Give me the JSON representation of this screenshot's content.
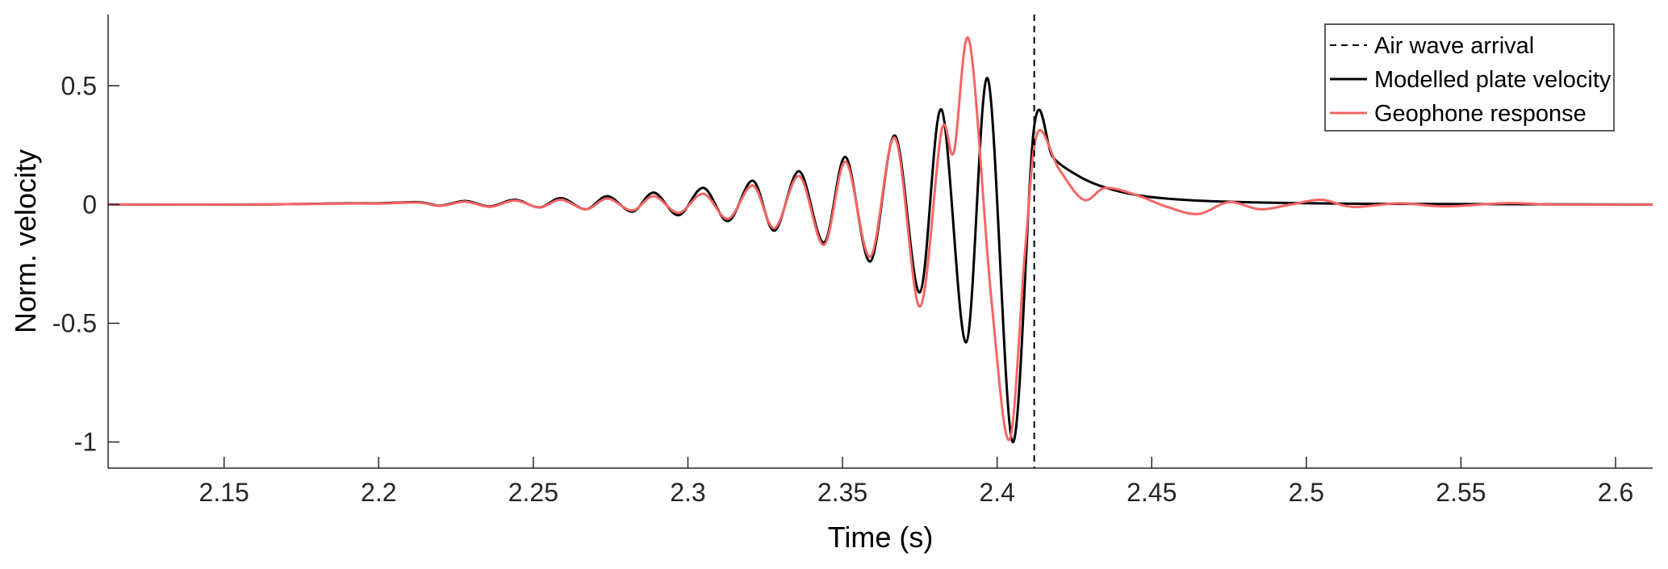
{
  "chart_data": {
    "type": "line",
    "title": "",
    "xlabel": "Time (s)",
    "ylabel": "Norm. velocity",
    "xlim": [
      2.1125,
      2.612
    ],
    "ylim": [
      -1.11,
      0.8
    ],
    "xticks": [
      2.15,
      2.2,
      2.25,
      2.3,
      2.35,
      2.4,
      2.45,
      2.5,
      2.55,
      2.6
    ],
    "xtick_labels": [
      "2.15",
      "2.2",
      "2.25",
      "2.3",
      "2.35",
      "2.4",
      "2.45",
      "2.5",
      "2.55",
      "2.6"
    ],
    "yticks": [
      -1,
      -0.5,
      0,
      0.5
    ],
    "ytick_labels": [
      "-1",
      "-0.5",
      "0",
      "0.5"
    ],
    "grid": false,
    "legend_position": "top-right",
    "series": [
      {
        "name": "Modelled plate velocity",
        "color": "#000000",
        "points": [
          [
            2.1125,
            0.0
          ],
          [
            2.16,
            0.0
          ],
          [
            2.19,
            0.005
          ],
          [
            2.2,
            0.005
          ],
          [
            2.213,
            0.01
          ],
          [
            2.22,
            -0.005
          ],
          [
            2.228,
            0.015
          ],
          [
            2.236,
            -0.008
          ],
          [
            2.244,
            0.02
          ],
          [
            2.252,
            -0.012
          ],
          [
            2.259,
            0.027
          ],
          [
            2.267,
            -0.02
          ],
          [
            2.274,
            0.035
          ],
          [
            2.282,
            -0.03
          ],
          [
            2.289,
            0.05
          ],
          [
            2.297,
            -0.045
          ],
          [
            2.305,
            0.07
          ],
          [
            2.313,
            -0.07
          ],
          [
            2.321,
            0.1
          ],
          [
            2.328,
            -0.11
          ],
          [
            2.336,
            0.14
          ],
          [
            2.344,
            -0.16
          ],
          [
            2.351,
            0.2
          ],
          [
            2.359,
            -0.24
          ],
          [
            2.367,
            0.29
          ],
          [
            2.375,
            -0.37
          ],
          [
            2.382,
            0.4
          ],
          [
            2.39,
            -0.58
          ],
          [
            2.397,
            0.53
          ],
          [
            2.405,
            -1.0
          ],
          [
            2.412,
            0.33
          ],
          [
            2.418,
            0.2
          ],
          [
            2.425,
            0.13
          ],
          [
            2.433,
            0.08
          ],
          [
            2.445,
            0.04
          ],
          [
            2.46,
            0.02
          ],
          [
            2.48,
            0.01
          ],
          [
            2.52,
            0.003
          ],
          [
            2.612,
            0.0
          ]
        ]
      },
      {
        "name": "Geophone response",
        "color": "#f56565",
        "points": [
          [
            2.1125,
            0.0
          ],
          [
            2.16,
            0.0
          ],
          [
            2.19,
            0.004
          ],
          [
            2.2,
            0.004
          ],
          [
            2.213,
            0.008
          ],
          [
            2.22,
            -0.006
          ],
          [
            2.228,
            0.012
          ],
          [
            2.236,
            -0.01
          ],
          [
            2.244,
            0.017
          ],
          [
            2.252,
            -0.012
          ],
          [
            2.259,
            0.02
          ],
          [
            2.267,
            -0.02
          ],
          [
            2.274,
            0.025
          ],
          [
            2.282,
            -0.025
          ],
          [
            2.289,
            0.035
          ],
          [
            2.297,
            -0.035
          ],
          [
            2.305,
            0.045
          ],
          [
            2.313,
            -0.06
          ],
          [
            2.321,
            0.08
          ],
          [
            2.328,
            -0.1
          ],
          [
            2.336,
            0.12
          ],
          [
            2.344,
            -0.17
          ],
          [
            2.351,
            0.18
          ],
          [
            2.359,
            -0.22
          ],
          [
            2.367,
            0.28
          ],
          [
            2.375,
            -0.43
          ],
          [
            2.382,
            0.31
          ],
          [
            2.386,
            0.22
          ],
          [
            2.391,
            0.69
          ],
          [
            2.398,
            -0.38
          ],
          [
            2.404,
            -0.99
          ],
          [
            2.409,
            -0.2
          ],
          [
            2.413,
            0.3
          ],
          [
            2.42,
            0.15
          ],
          [
            2.428,
            0.02
          ],
          [
            2.435,
            0.07
          ],
          [
            2.445,
            0.04
          ],
          [
            2.455,
            -0.01
          ],
          [
            2.465,
            -0.04
          ],
          [
            2.475,
            0.01
          ],
          [
            2.485,
            -0.02
          ],
          [
            2.495,
            0.0
          ],
          [
            2.505,
            0.02
          ],
          [
            2.515,
            -0.01
          ],
          [
            2.53,
            0.005
          ],
          [
            2.545,
            -0.008
          ],
          [
            2.565,
            0.006
          ],
          [
            2.58,
            0.0
          ],
          [
            2.612,
            0.0
          ]
        ]
      }
    ],
    "vlines": [
      {
        "name": "Air wave arrival",
        "x": 2.412,
        "color": "#000000",
        "style": "dashed"
      }
    ],
    "legend": [
      {
        "label": "Air wave arrival",
        "color": "#000000",
        "style": "dashed"
      },
      {
        "label": "Modelled plate velocity",
        "color": "#000000",
        "style": "solid"
      },
      {
        "label": "Geophone response",
        "color": "#f56565",
        "style": "solid"
      }
    ]
  }
}
